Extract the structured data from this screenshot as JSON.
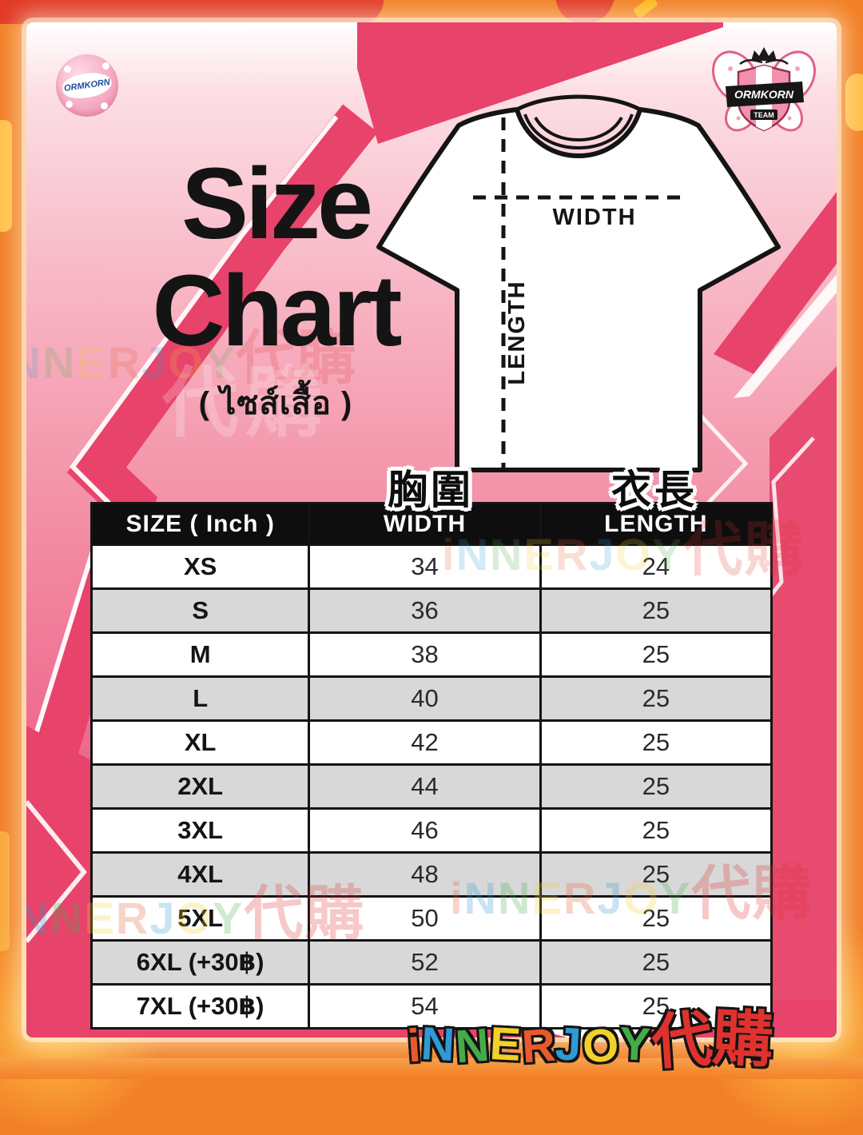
{
  "colors": {
    "frame_orange": "#f28026",
    "frame_red": "#e03a26",
    "frame_yellow": "#ffc24a",
    "card_pink_light": "#fcdee4",
    "card_pink_dark": "#e84a6f",
    "accent_crimson": "#e8436b",
    "table_header_bg": "#0e0e0e",
    "table_stripe_gray": "#d8d8d8",
    "title_color": "#141414"
  },
  "logos": {
    "left_text": "ORMKORN",
    "right_text": "ORMKORN",
    "right_subtext": "TEAM"
  },
  "title": {
    "line1": "Size",
    "line2": "Chart",
    "subtitle_thai": "( ไซส์เสื้อ )"
  },
  "diagram": {
    "width_label": "WIDTH",
    "length_label": "LENGTH"
  },
  "annotations": {
    "chest_cn": "胸圍",
    "length_cn": "衣長"
  },
  "table": {
    "headers": [
      "SIZE ( Inch )",
      "WIDTH",
      "LENGTH"
    ],
    "rows": [
      {
        "size": "XS",
        "width": "34",
        "length": "24"
      },
      {
        "size": "S",
        "width": "36",
        "length": "25"
      },
      {
        "size": "M",
        "width": "38",
        "length": "25"
      },
      {
        "size": "L",
        "width": "40",
        "length": "25"
      },
      {
        "size": "XL",
        "width": "42",
        "length": "25"
      },
      {
        "size": "2XL",
        "width": "44",
        "length": "25"
      },
      {
        "size": "3XL",
        "width": "46",
        "length": "25"
      },
      {
        "size": "4XL",
        "width": "48",
        "length": "25"
      },
      {
        "size": "5XL",
        "width": "50",
        "length": "25"
      },
      {
        "size": "6XL (+30฿)",
        "width": "52",
        "length": "25"
      },
      {
        "size": "7XL (+30฿)",
        "width": "54",
        "length": "25"
      }
    ]
  },
  "watermark": {
    "text": "iNNERJOY代購",
    "cjk": "代購",
    "letters": [
      {
        "ch": "i",
        "color": "#e85a2e"
      },
      {
        "ch": "N",
        "color": "#2f9ad4"
      },
      {
        "ch": "N",
        "color": "#45ab49"
      },
      {
        "ch": "E",
        "color": "#f3cf2a"
      },
      {
        "ch": "R",
        "color": "#e85a2e"
      },
      {
        "ch": "J",
        "color": "#2f9ad4"
      },
      {
        "ch": "O",
        "color": "#f3cf2a"
      },
      {
        "ch": "Y",
        "color": "#45ab49"
      },
      {
        "ch": "代",
        "color": "#df322e",
        "cjk": true
      },
      {
        "ch": "購",
        "color": "#df322e",
        "cjk": true
      }
    ]
  },
  "chart_data": {
    "type": "table",
    "title": "Size Chart",
    "subtitle": "( ไซส์เสื้อ )",
    "units": "inch",
    "columns": [
      "SIZE ( Inch )",
      "WIDTH",
      "LENGTH"
    ],
    "rows": [
      [
        "XS",
        34,
        24
      ],
      [
        "S",
        36,
        25
      ],
      [
        "M",
        38,
        25
      ],
      [
        "L",
        40,
        25
      ],
      [
        "XL",
        42,
        25
      ],
      [
        "2XL",
        44,
        25
      ],
      [
        "3XL",
        46,
        25
      ],
      [
        "4XL",
        48,
        25
      ],
      [
        "5XL",
        50,
        25
      ],
      [
        "6XL (+30฿)",
        52,
        25
      ],
      [
        "7XL (+30฿)",
        54,
        25
      ]
    ],
    "notes": "6XL and 7XL cost +30 baht extra"
  }
}
